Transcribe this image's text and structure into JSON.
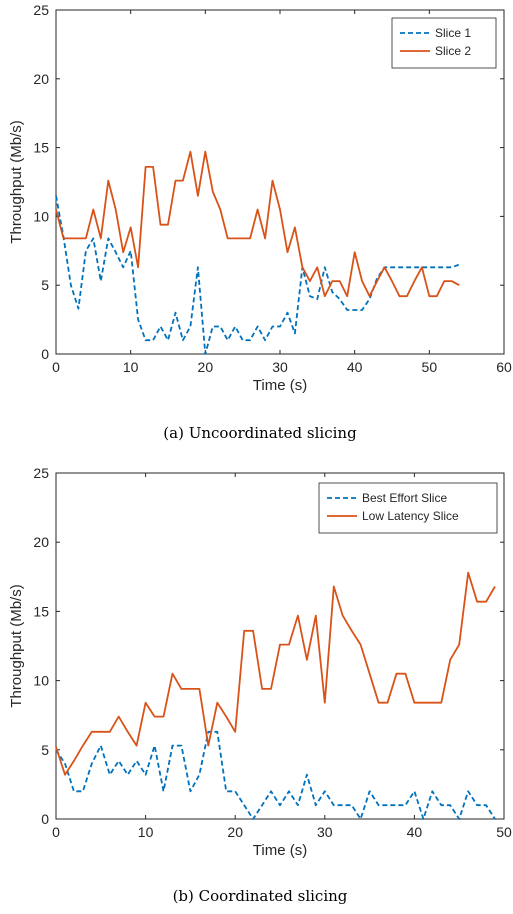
{
  "colors": {
    "series_1": "#0072BD",
    "series_2": "#D95319"
  },
  "chart_data": [
    {
      "type": "line",
      "caption": "(a) Uncoordinated slicing",
      "xlabel": "Time (s)",
      "ylabel": "Throughput (Mb/s)",
      "xlim": [
        0,
        60
      ],
      "ylim": [
        0,
        25
      ],
      "xticks": [
        0,
        10,
        20,
        30,
        40,
        50,
        60
      ],
      "yticks": [
        0,
        5,
        10,
        15,
        20,
        25
      ],
      "legend_position": "top-right",
      "series": [
        {
          "name": "Slice 1",
          "style": "dashed",
          "x": [
            0,
            1,
            2,
            3,
            4,
            5,
            6,
            7,
            8,
            9,
            10,
            11,
            12,
            13,
            14,
            15,
            16,
            17,
            18,
            19,
            20,
            21,
            22,
            23,
            24,
            25,
            26,
            27,
            28,
            29,
            30,
            31,
            32,
            33,
            34,
            35,
            36,
            37,
            38,
            39,
            40,
            41,
            42,
            43,
            44,
            45,
            46,
            47,
            48,
            49,
            50,
            51,
            52,
            53,
            54
          ],
          "y": [
            11.5,
            8.5,
            5.0,
            3.3,
            7.5,
            8.4,
            5.3,
            8.4,
            7.4,
            6.3,
            7.5,
            2.5,
            1.0,
            1.0,
            2.0,
            1.0,
            3.0,
            1.0,
            2.0,
            6.3,
            0,
            2.0,
            2.0,
            1.0,
            2.0,
            1.0,
            1.0,
            2.0,
            1.0,
            2.0,
            2.0,
            3.0,
            1.5,
            6.3,
            4.2,
            4.0,
            6.3,
            4.5,
            4.0,
            3.2,
            3.2,
            3.2,
            4.0,
            5.5,
            6.3,
            6.3,
            6.3,
            6.3,
            6.3,
            6.3,
            6.3,
            6.3,
            6.3,
            6.3,
            6.5
          ]
        },
        {
          "name": "Slice 2",
          "style": "solid",
          "x": [
            0,
            1,
            2,
            3,
            4,
            5,
            6,
            7,
            8,
            9,
            10,
            11,
            12,
            13,
            14,
            15,
            16,
            17,
            18,
            19,
            20,
            21,
            22,
            23,
            24,
            25,
            26,
            27,
            28,
            29,
            30,
            31,
            32,
            33,
            34,
            35,
            36,
            37,
            38,
            39,
            40,
            41,
            42,
            43,
            44,
            45,
            46,
            47,
            48,
            49,
            50,
            51,
            52,
            53,
            54
          ],
          "y": [
            10.5,
            8.4,
            8.4,
            8.4,
            8.4,
            10.5,
            8.4,
            12.6,
            10.5,
            7.4,
            9.2,
            6.3,
            13.6,
            13.6,
            9.4,
            9.4,
            12.6,
            12.6,
            14.7,
            11.5,
            14.7,
            11.8,
            10.5,
            8.4,
            8.4,
            8.4,
            8.4,
            10.5,
            8.4,
            12.6,
            10.5,
            7.4,
            9.2,
            6.3,
            5.3,
            6.3,
            4.2,
            5.3,
            5.3,
            4.2,
            7.4,
            5.3,
            4.2,
            5.3,
            6.3,
            5.3,
            4.2,
            4.2,
            5.3,
            6.3,
            4.2,
            4.2,
            5.3,
            5.3,
            5.0
          ]
        }
      ]
    },
    {
      "type": "line",
      "caption": "(b) Coordinated slicing",
      "xlabel": "Time (s)",
      "ylabel": "Throughput (Mb/s)",
      "xlim": [
        0,
        50
      ],
      "ylim": [
        0,
        25
      ],
      "xticks": [
        0,
        10,
        20,
        30,
        40,
        50
      ],
      "yticks": [
        0,
        5,
        10,
        15,
        20,
        25
      ],
      "legend_position": "top-right",
      "series": [
        {
          "name": "Best Effort Slice",
          "style": "dashed",
          "x": [
            0,
            1,
            2,
            3,
            4,
            5,
            6,
            7,
            8,
            9,
            10,
            11,
            12,
            13,
            14,
            15,
            16,
            17,
            18,
            19,
            20,
            21,
            22,
            23,
            24,
            25,
            26,
            27,
            28,
            29,
            30,
            31,
            32,
            33,
            34,
            35,
            36,
            37,
            38,
            39,
            40,
            41,
            42,
            43,
            44,
            45,
            46,
            47,
            48,
            49
          ],
          "y": [
            5.0,
            4.0,
            2.0,
            2.0,
            4.0,
            5.3,
            3.2,
            4.2,
            3.2,
            4.2,
            3.2,
            5.3,
            2.0,
            5.3,
            5.3,
            2.0,
            3.2,
            6.3,
            6.3,
            2.0,
            2.0,
            1.0,
            0,
            1.0,
            2.0,
            1.0,
            2.0,
            1.0,
            3.2,
            1.0,
            2.0,
            1.0,
            1.0,
            1.0,
            0,
            2.0,
            1.0,
            1.0,
            1.0,
            1.0,
            2.0,
            0,
            2.0,
            1.0,
            1.0,
            0,
            2.0,
            1.0,
            1.0,
            0
          ]
        },
        {
          "name": "Low Latency Slice",
          "style": "solid",
          "x": [
            0,
            1,
            2,
            3,
            4,
            5,
            6,
            7,
            8,
            9,
            10,
            11,
            12,
            13,
            14,
            15,
            16,
            17,
            18,
            19,
            20,
            21,
            22,
            23,
            24,
            25,
            26,
            27,
            28,
            29,
            30,
            31,
            32,
            33,
            34,
            35,
            36,
            37,
            38,
            39,
            40,
            41,
            42,
            43,
            44,
            45,
            46,
            47,
            48,
            49
          ],
          "y": [
            5.2,
            3.2,
            4.2,
            5.3,
            6.3,
            6.3,
            6.3,
            7.4,
            6.3,
            5.3,
            8.4,
            7.4,
            7.4,
            10.5,
            9.4,
            9.4,
            9.4,
            5.3,
            8.4,
            7.4,
            6.3,
            13.6,
            13.6,
            9.4,
            9.4,
            12.6,
            12.6,
            14.7,
            11.5,
            14.7,
            8.4,
            16.8,
            14.7,
            13.6,
            12.6,
            10.5,
            8.4,
            8.4,
            10.5,
            10.5,
            8.4,
            8.4,
            8.4,
            8.4,
            11.5,
            12.6,
            17.8,
            15.7,
            15.7,
            16.8
          ]
        }
      ]
    }
  ]
}
